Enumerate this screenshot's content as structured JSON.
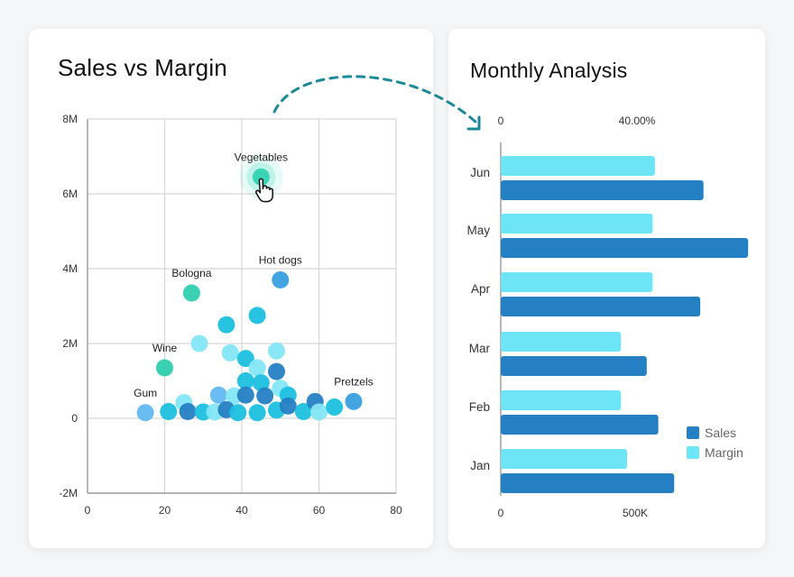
{
  "left_card": {
    "title": "Sales vs Margin"
  },
  "right_card": {
    "title": "Monthly Analysis"
  },
  "colors": {
    "sales": "#2580c3",
    "margin": "#6de5f6",
    "highlight": "#30d3b3",
    "connector": "#1c8a96",
    "grid": "#d6d6d6",
    "axis": "#888888"
  },
  "icons": {
    "cursor": "hand-pointer-icon",
    "connector": "dashed-arrow-icon"
  },
  "chart_data": [
    {
      "type": "scatter",
      "title": "Sales vs Margin",
      "xlim": [
        0,
        80
      ],
      "ylim": [
        -2000000,
        8000000
      ],
      "x_ticks": [
        0,
        20,
        40,
        60,
        80
      ],
      "x_tick_labels": [
        "0",
        "20",
        "40",
        "60",
        "80"
      ],
      "y_ticks": [
        -2000000,
        0,
        2000000,
        4000000,
        6000000,
        8000000
      ],
      "y_tick_labels": [
        "-2M",
        "0",
        "2M",
        "4M",
        "6M",
        "8M"
      ],
      "grid": true,
      "points": [
        {
          "x": 45,
          "y": 6450000,
          "label": "Vegetables",
          "color": "#30d3b3",
          "highlight": true
        },
        {
          "x": 50,
          "y": 3700000,
          "label": "Hot dogs",
          "color": "#3a9fe0"
        },
        {
          "x": 27,
          "y": 3350000,
          "label": "Bologna",
          "color": "#2fcfae"
        },
        {
          "x": 20,
          "y": 1350000,
          "label": "Wine",
          "color": "#2fcfae"
        },
        {
          "x": 15,
          "y": 150000,
          "label": "Gum",
          "color": "#62b8f2"
        },
        {
          "x": 69,
          "y": 450000,
          "label": "Pretzels",
          "color": "#3a9fe0"
        },
        {
          "x": 36,
          "y": 2500000,
          "color": "#1ec0e0"
        },
        {
          "x": 44,
          "y": 2750000,
          "color": "#1ec0e0"
        },
        {
          "x": 29,
          "y": 2000000,
          "color": "#84e6f5"
        },
        {
          "x": 37,
          "y": 1750000,
          "color": "#84e6f5"
        },
        {
          "x": 49,
          "y": 1800000,
          "color": "#84e6f5"
        },
        {
          "x": 41,
          "y": 1600000,
          "color": "#1ec0e0"
        },
        {
          "x": 44,
          "y": 1350000,
          "color": "#84e6f5"
        },
        {
          "x": 49,
          "y": 1250000,
          "color": "#2580c3"
        },
        {
          "x": 41,
          "y": 1000000,
          "color": "#1ec0e0"
        },
        {
          "x": 45,
          "y": 950000,
          "color": "#1ec0e0"
        },
        {
          "x": 50,
          "y": 800000,
          "color": "#84e6f5"
        },
        {
          "x": 34,
          "y": 620000,
          "color": "#62b8f2"
        },
        {
          "x": 38,
          "y": 600000,
          "color": "#84e6f5"
        },
        {
          "x": 41,
          "y": 620000,
          "color": "#2580c3"
        },
        {
          "x": 46,
          "y": 600000,
          "color": "#2580c3"
        },
        {
          "x": 52,
          "y": 620000,
          "color": "#1ec0e0"
        },
        {
          "x": 25,
          "y": 420000,
          "color": "#84e6f5"
        },
        {
          "x": 21,
          "y": 180000,
          "color": "#1ec0e0"
        },
        {
          "x": 26,
          "y": 180000,
          "color": "#2580c3"
        },
        {
          "x": 30,
          "y": 170000,
          "color": "#1ec0e0"
        },
        {
          "x": 33,
          "y": 170000,
          "color": "#84e6f5"
        },
        {
          "x": 36,
          "y": 230000,
          "color": "#2580c3"
        },
        {
          "x": 39,
          "y": 150000,
          "color": "#1ec0e0"
        },
        {
          "x": 44,
          "y": 150000,
          "color": "#1ec0e0"
        },
        {
          "x": 49,
          "y": 220000,
          "color": "#1ec0e0"
        },
        {
          "x": 52,
          "y": 330000,
          "color": "#2580c3"
        },
        {
          "x": 56,
          "y": 180000,
          "color": "#1ec0e0"
        },
        {
          "x": 59,
          "y": 450000,
          "color": "#2580c3"
        },
        {
          "x": 60,
          "y": 170000,
          "color": "#84e6f5"
        },
        {
          "x": 64,
          "y": 300000,
          "color": "#1ec0e0"
        }
      ]
    },
    {
      "type": "bar",
      "orientation": "horizontal",
      "title": "Monthly Analysis",
      "categories": [
        "Jun",
        "May",
        "Apr",
        "Mar",
        "Feb",
        "Jan"
      ],
      "series": [
        {
          "name": "Margin",
          "axis": "top",
          "values": [
            0.4525,
            0.446,
            0.446,
            0.353,
            0.353,
            0.371
          ]
        },
        {
          "name": "Sales",
          "axis": "bottom",
          "values": [
            754000,
            920000,
            742000,
            543000,
            586000,
            645000
          ]
        }
      ],
      "top_axis": {
        "ticks": [
          0,
          0.4
        ],
        "tick_labels": [
          "0",
          "40.00%"
        ]
      },
      "bottom_axis": {
        "ticks": [
          0,
          500000
        ],
        "tick_labels": [
          "0",
          "500K"
        ]
      },
      "legend": [
        "Sales",
        "Margin"
      ],
      "legend_position": "bottom-right"
    }
  ]
}
